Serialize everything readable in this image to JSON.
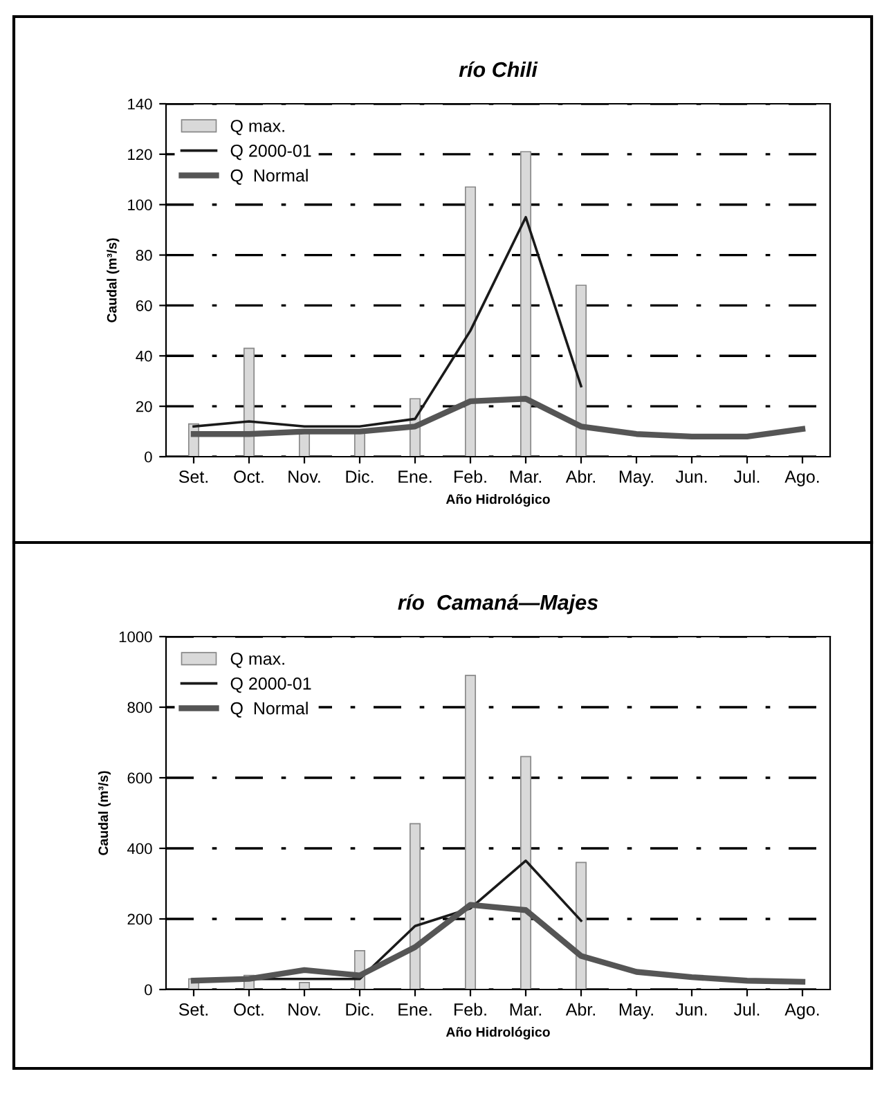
{
  "chart_data": [
    {
      "type": "bar",
      "title": "río Chili",
      "xlabel": "Año Hidrológico",
      "ylabel": "Caudal (m³/s)",
      "categories": [
        "Set.",
        "Oct.",
        "Nov.",
        "Dic.",
        "Ene.",
        "Feb.",
        "Mar.",
        "Abr.",
        "May.",
        "Jun.",
        "Jul.",
        "Ago."
      ],
      "series": [
        {
          "name": "Q max.",
          "color": "#d9d9d9",
          "values": [
            13,
            43,
            10,
            10,
            23,
            107,
            121,
            68,
            null,
            null,
            null,
            null
          ]
        },
        {
          "name": "Q 2000-01",
          "type": "line",
          "color": "#1a1a1a",
          "values": [
            12,
            14,
            12,
            12,
            15,
            50,
            95,
            28,
            null,
            null,
            null,
            null
          ]
        },
        {
          "name": "Q  Normal",
          "type": "line",
          "color": "#555555",
          "values": [
            9,
            9,
            10,
            10,
            12,
            22,
            23,
            12,
            9,
            8,
            8,
            11
          ]
        }
      ],
      "ylim": [
        0,
        140
      ],
      "yticks": [
        0,
        20,
        40,
        60,
        80,
        100,
        120,
        140
      ],
      "grid": "y",
      "legend": "top left"
    },
    {
      "type": "bar",
      "title": "río  Camaná—Majes",
      "xlabel": "Año Hidrológico",
      "ylabel": "Caudal (m³/s)",
      "categories": [
        "Set.",
        "Oct.",
        "Nov.",
        "Dic.",
        "Ene.",
        "Feb.",
        "Mar.",
        "Abr.",
        "May.",
        "Jun.",
        "Jul.",
        "Ago."
      ],
      "series": [
        {
          "name": "Q max.",
          "color": "#d9d9d9",
          "values": [
            30,
            40,
            20,
            110,
            470,
            890,
            660,
            360,
            null,
            null,
            null,
            null
          ]
        },
        {
          "name": "Q 2000-01",
          "type": "line",
          "color": "#1a1a1a",
          "values": [
            30,
            30,
            30,
            30,
            180,
            230,
            365,
            195,
            null,
            null,
            null,
            null
          ]
        },
        {
          "name": "Q  Normal",
          "type": "line",
          "color": "#555555",
          "values": [
            25,
            30,
            55,
            40,
            120,
            240,
            225,
            95,
            50,
            35,
            25,
            22
          ]
        }
      ],
      "ylim": [
        0,
        1000
      ],
      "yticks": [
        0,
        200,
        400,
        600,
        800,
        1000
      ],
      "grid": "y",
      "legend": "top left"
    }
  ]
}
